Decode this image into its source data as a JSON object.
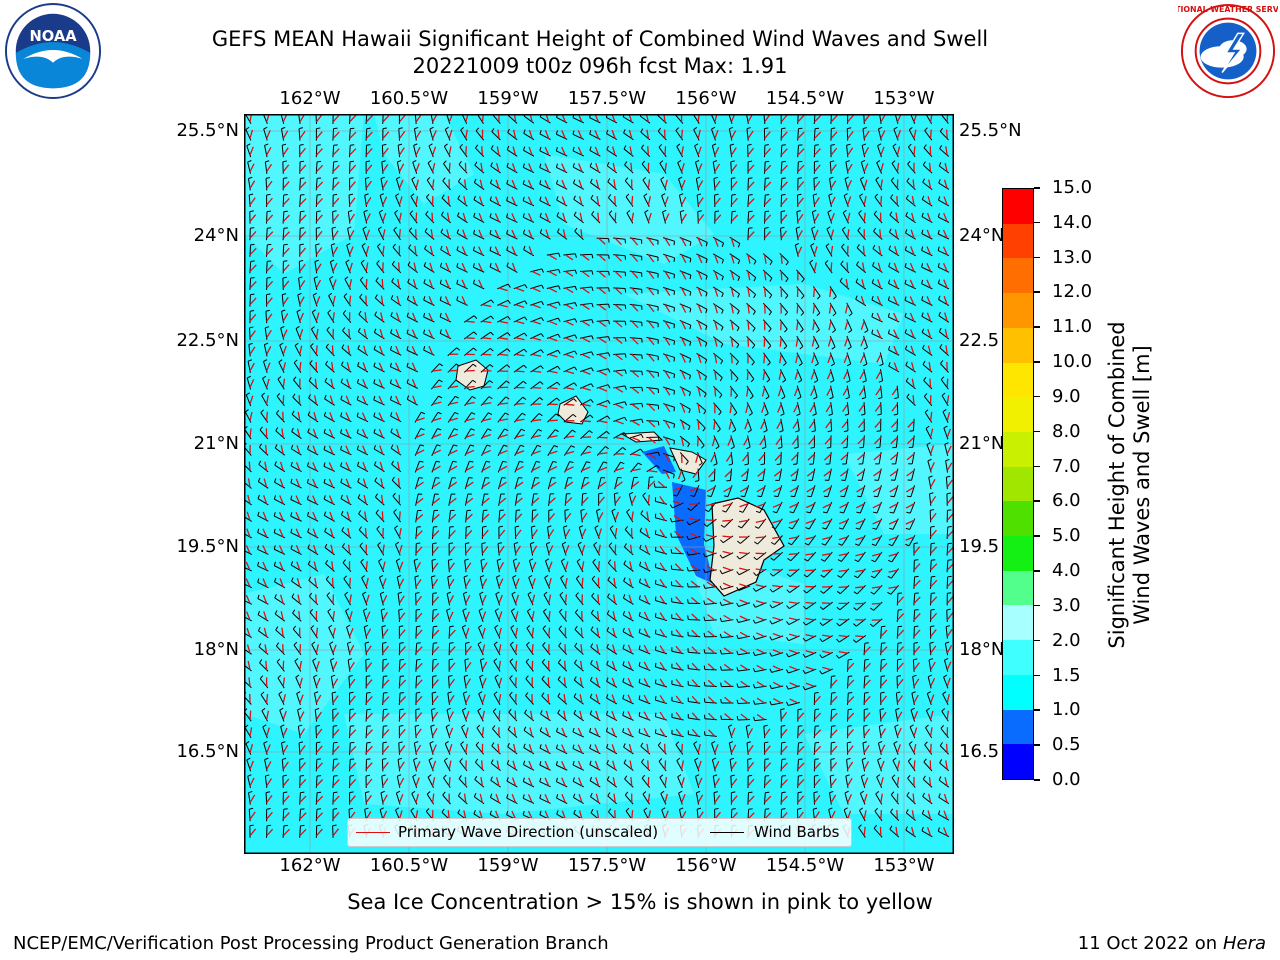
{
  "title": {
    "line1": "GEFS MEAN Hawaii Significant Height of Combined Wind Waves and Swell",
    "line2": "20221009 t00z 096h fcst   Max: 1.91"
  },
  "logos": {
    "left": "noaa-logo",
    "right": "national-weather-service-logo",
    "left_text": "NOAA",
    "right_text": "NATIONAL WEATHER SERVICE"
  },
  "axes": {
    "lon_labels": [
      "162°W",
      "160.5°W",
      "159°W",
      "157.5°W",
      "156°W",
      "154.5°W",
      "153°W"
    ],
    "lat_labels": [
      "25.5°N",
      "24°N",
      "22.5°N",
      "21°N",
      "19.5°N",
      "18°N",
      "16.5°N"
    ],
    "lat_labels_right": [
      "25.5°N",
      "24°N",
      "22.5",
      "21°N",
      "19.5",
      "18°N",
      "16.5"
    ]
  },
  "legend": {
    "wave_label": "Primary Wave Direction (unscaled)",
    "wind_label": "Wind Barbs",
    "wave_color": "#e01010",
    "wind_color": "#000000"
  },
  "colorbar": {
    "title_line1": "Significant Height of Combined",
    "title_line2": "Wind Waves and Swell [m]",
    "levels": [
      "0.0",
      "0.5",
      "1.0",
      "1.5",
      "2.0",
      "3.0",
      "4.0",
      "5.0",
      "6.0",
      "7.0",
      "8.0",
      "9.0",
      "10.0",
      "11.0",
      "12.0",
      "13.0",
      "14.0",
      "15.0"
    ],
    "colors": [
      "#0000ff",
      "#0a6cff",
      "#00ffff",
      "#40ffff",
      "#a8ffff",
      "#52ff8c",
      "#14f014",
      "#50e000",
      "#a0e600",
      "#c8f000",
      "#f0f000",
      "#ffe600",
      "#ffc000",
      "#ff9600",
      "#ff6e00",
      "#ff4000",
      "#ff0000"
    ]
  },
  "sea_background_color": "#2ef4ff",
  "land_color": "#efebdc",
  "subnote": "Sea Ice Concentration > 15% is shown in pink to yellow",
  "footer": {
    "left": "NCEP/EMC/Verification Post Processing Product Generation Branch",
    "right_prefix": "11 Oct 2022 on ",
    "right_machine": "Hera"
  }
}
